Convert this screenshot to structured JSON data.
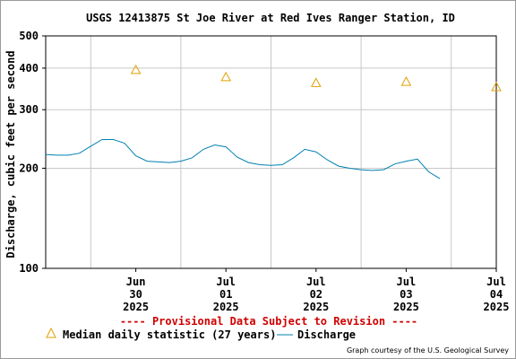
{
  "chart_data": {
    "type": "line",
    "title": "USGS 12413875 St Joe River at Red Ives Ranger Station, ID",
    "ylabel": "Discharge, cubic feet per second",
    "xlabel": "",
    "y_scale": "log",
    "ylim": [
      100,
      500
    ],
    "y_ticks": [
      "100",
      "200",
      "300",
      "400",
      "500"
    ],
    "x_ticks": [
      {
        "line1": "Jun",
        "line2": "30",
        "line3": "2025"
      },
      {
        "line1": "Jul",
        "line2": "01",
        "line3": "2025"
      },
      {
        "line1": "Jul",
        "line2": "02",
        "line3": "2025"
      },
      {
        "line1": "Jul",
        "line2": "03",
        "line3": "2025"
      },
      {
        "line1": "Jul",
        "line2": "04",
        "line3": "2025"
      }
    ],
    "grid": true,
    "provisional_note": "---- Provisional Data Subject to Revision ----",
    "credit": "Graph courtesy of the U.S. Geological Survey",
    "colors": {
      "discharge": "#0080b0",
      "median": "#e0a000",
      "provisional": "#d00000",
      "grid": "#c8c8c8"
    },
    "series": [
      {
        "name": "Median daily statistic (27 years)",
        "marker": "triangle",
        "x": [
          "2025-06-30",
          "2025-07-01",
          "2025-07-02",
          "2025-07-03",
          "2025-07-04"
        ],
        "values": [
          395,
          376,
          361,
          364,
          351
        ]
      },
      {
        "name": "Discharge",
        "marker": "line",
        "x": [
          "2025-06-29 12:00",
          "2025-06-29 15:00",
          "2025-06-29 18:00",
          "2025-06-29 21:00",
          "2025-06-30 00:00",
          "2025-06-30 03:00",
          "2025-06-30 06:00",
          "2025-06-30 09:00",
          "2025-06-30 12:00",
          "2025-06-30 15:00",
          "2025-06-30 18:00",
          "2025-06-30 21:00",
          "2025-07-01 00:00",
          "2025-07-01 03:00",
          "2025-07-01 06:00",
          "2025-07-01 09:00",
          "2025-07-01 12:00",
          "2025-07-01 15:00",
          "2025-07-01 18:00",
          "2025-07-01 21:00",
          "2025-07-02 00:00",
          "2025-07-02 03:00",
          "2025-07-02 06:00",
          "2025-07-02 09:00",
          "2025-07-02 12:00",
          "2025-07-02 15:00",
          "2025-07-02 18:00",
          "2025-07-02 21:00",
          "2025-07-03 00:00",
          "2025-07-03 03:00",
          "2025-07-03 06:00",
          "2025-07-03 09:00",
          "2025-07-03 12:00",
          "2025-07-03 15:00",
          "2025-07-03 18:00",
          "2025-07-03 21:00"
        ],
        "values": [
          220,
          219,
          219,
          222,
          233,
          244,
          244,
          238,
          218,
          210,
          209,
          208,
          210,
          215,
          228,
          235,
          232,
          216,
          208,
          205,
          204,
          205,
          215,
          228,
          224,
          212,
          203,
          200,
          198,
          197,
          198,
          206,
          210,
          213,
          195,
          186
        ]
      }
    ]
  }
}
